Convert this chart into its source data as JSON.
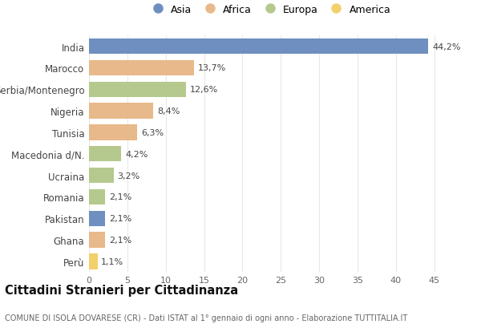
{
  "countries": [
    "India",
    "Marocco",
    "Serbia/Montenegro",
    "Nigeria",
    "Tunisia",
    "Macedonia d/N.",
    "Ucraina",
    "Romania",
    "Pakistan",
    "Ghana",
    "Perù"
  ],
  "values": [
    44.2,
    13.7,
    12.6,
    8.4,
    6.3,
    4.2,
    3.2,
    2.1,
    2.1,
    2.1,
    1.1
  ],
  "labels": [
    "44,2%",
    "13,7%",
    "12,6%",
    "8,4%",
    "6,3%",
    "4,2%",
    "3,2%",
    "2,1%",
    "2,1%",
    "2,1%",
    "1,1%"
  ],
  "continents": [
    "Asia",
    "Africa",
    "Europa",
    "Africa",
    "Africa",
    "Europa",
    "Europa",
    "Europa",
    "Asia",
    "Africa",
    "America"
  ],
  "colors": {
    "Asia": "#6e8fbf",
    "Africa": "#e8b98a",
    "Europa": "#b5c98e",
    "America": "#f2d06b"
  },
  "xlim": [
    0,
    47
  ],
  "xticks": [
    0,
    5,
    10,
    15,
    20,
    25,
    30,
    35,
    40,
    45
  ],
  "title": "Cittadini Stranieri per Cittadinanza",
  "subtitle": "COMUNE DI ISOLA DOVARESE (CR) - Dati ISTAT al 1° gennaio di ogni anno - Elaborazione TUTTITALIA.IT",
  "background_color": "#ffffff",
  "grid_color": "#e8e8e8",
  "bar_height": 0.72,
  "legend_entries": [
    "Asia",
    "Africa",
    "Europa",
    "America"
  ]
}
